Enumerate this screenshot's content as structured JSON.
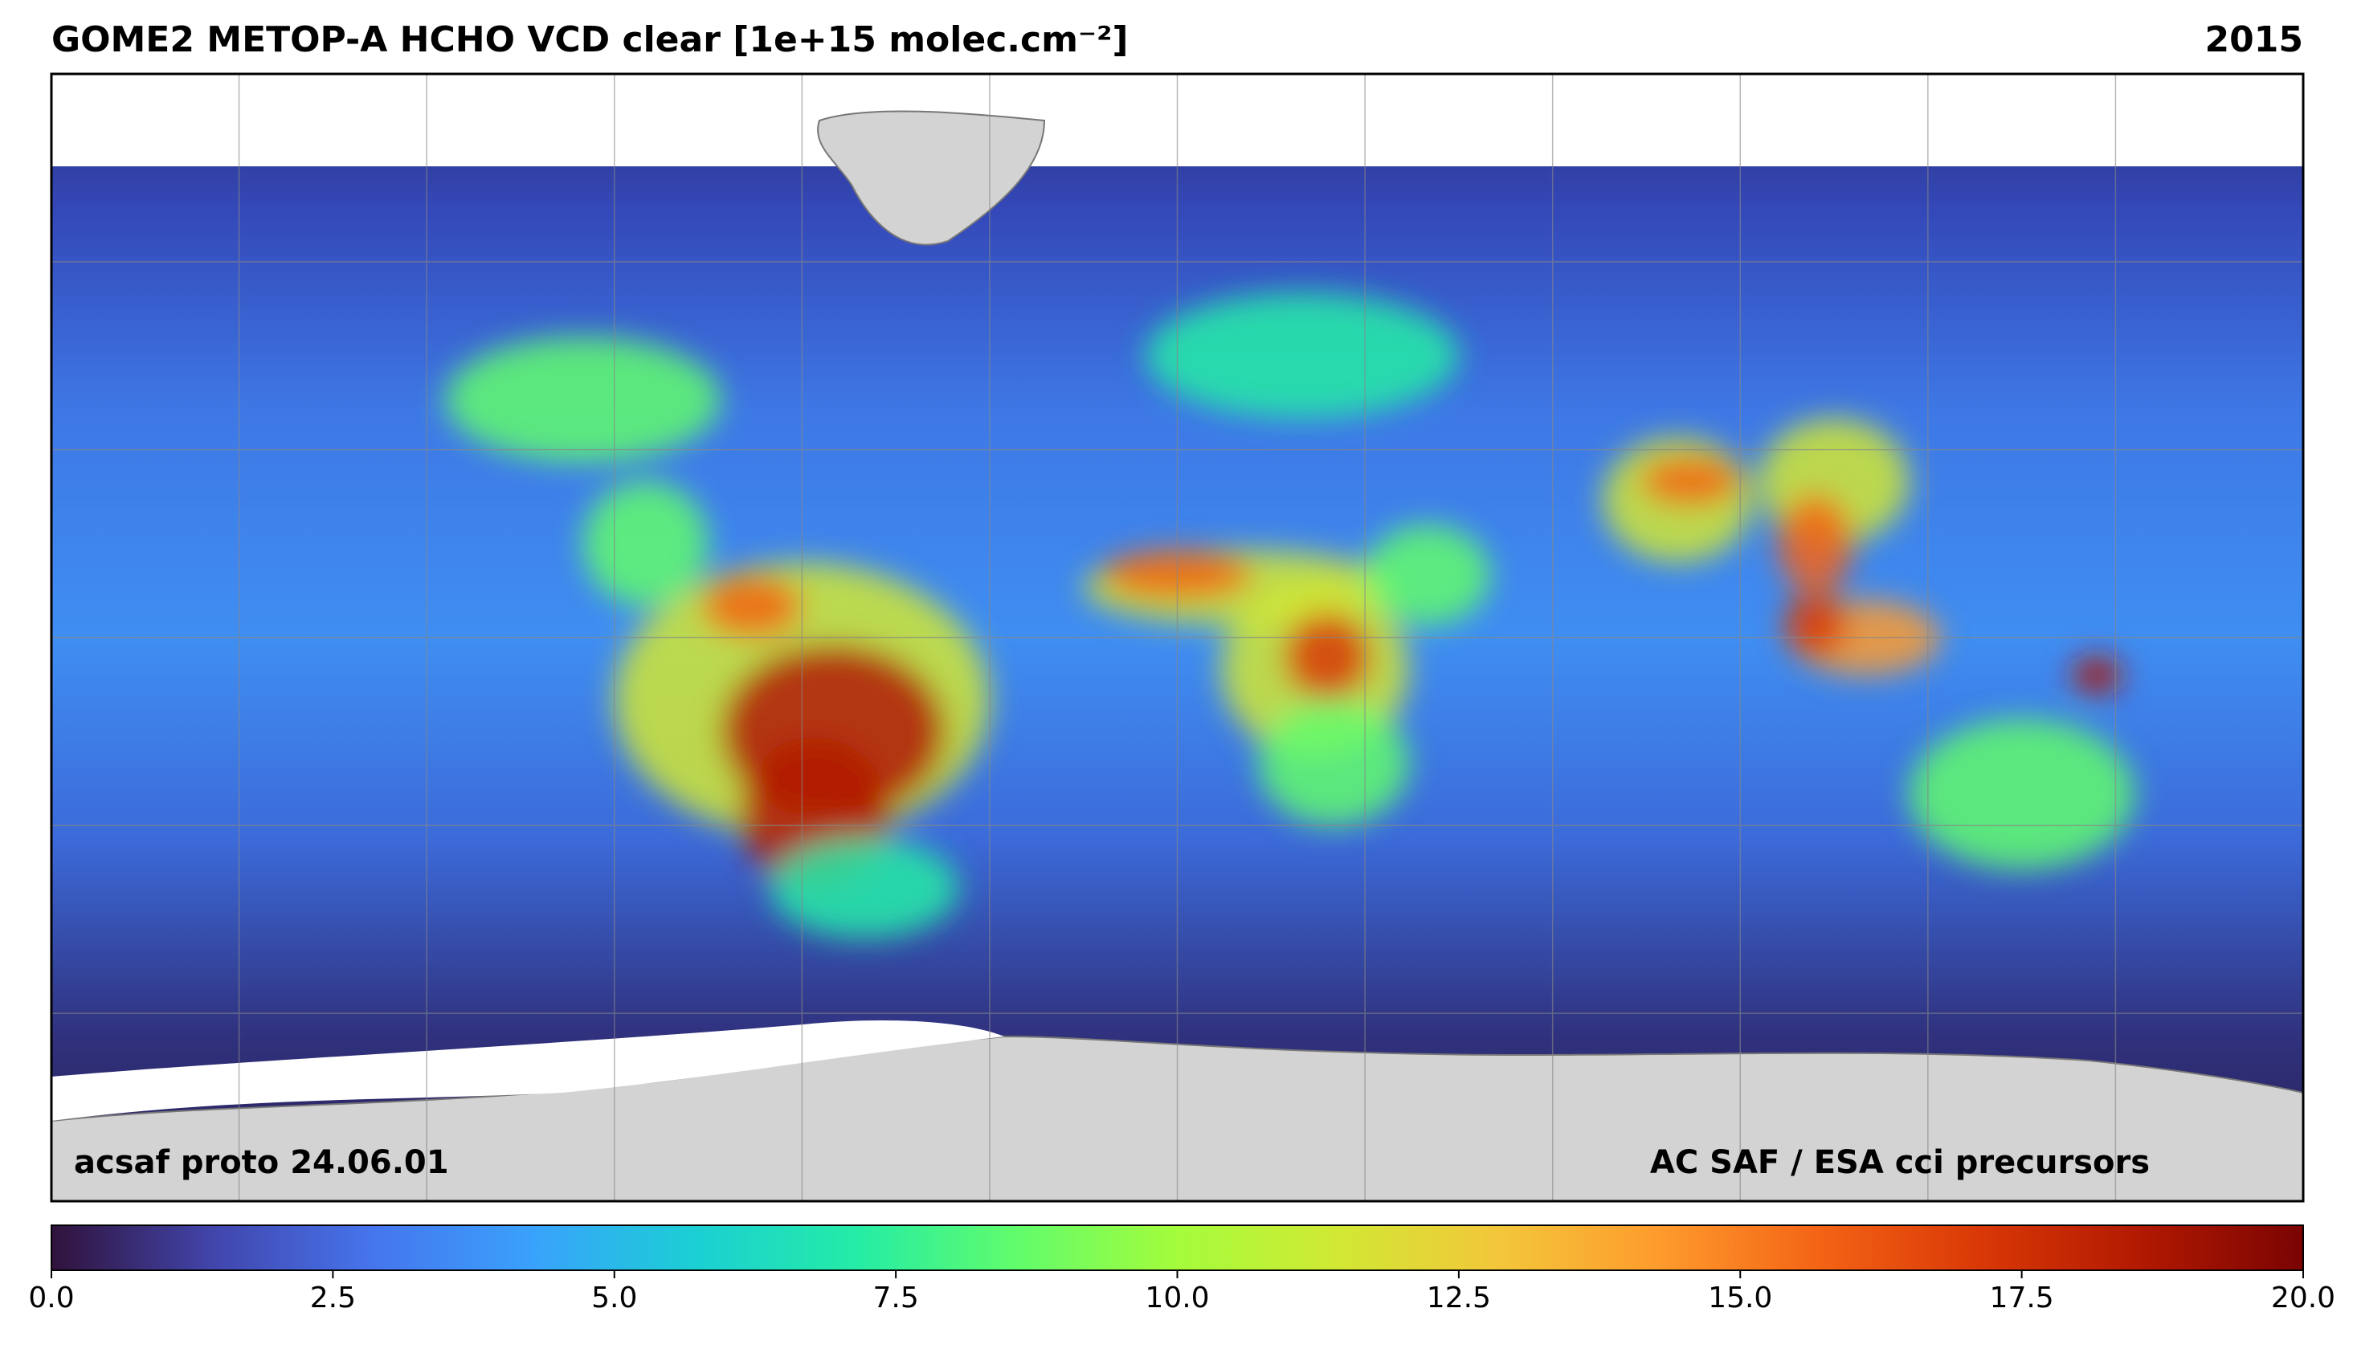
{
  "chart_data": {
    "type": "map",
    "title": "GOME2 METOP-A HCHO VCD clear [1e+15 molec.cm⁻²]",
    "subtitle": "2015",
    "annotations": [
      "acsaf proto 24.06.01",
      "AC SAF / ESA cci precursors"
    ],
    "colorbar": {
      "clim": [
        0,
        20
      ],
      "ticks": [
        {
          "value": 0,
          "label": "0.0"
        },
        2.5,
        {
          "value": 5,
          "label": "5.0"
        },
        7.5,
        {
          "value": 10,
          "label": "10.0"
        },
        12.5,
        {
          "value": 15,
          "label": "15.0"
        },
        17.5,
        {
          "value": 20,
          "label": "20.0"
        }
      ],
      "colormap": [
        "#30123b",
        "#4145ab",
        "#4675ed",
        "#39a2fc",
        "#1bcfd4",
        "#24eca6",
        "#61fc6c",
        "#a4fc3b",
        "#d1e834",
        "#f3c63a",
        "#fe9b2d",
        "#f36315",
        "#d93806",
        "#b11901",
        "#7a0403"
      ]
    }
  }
}
